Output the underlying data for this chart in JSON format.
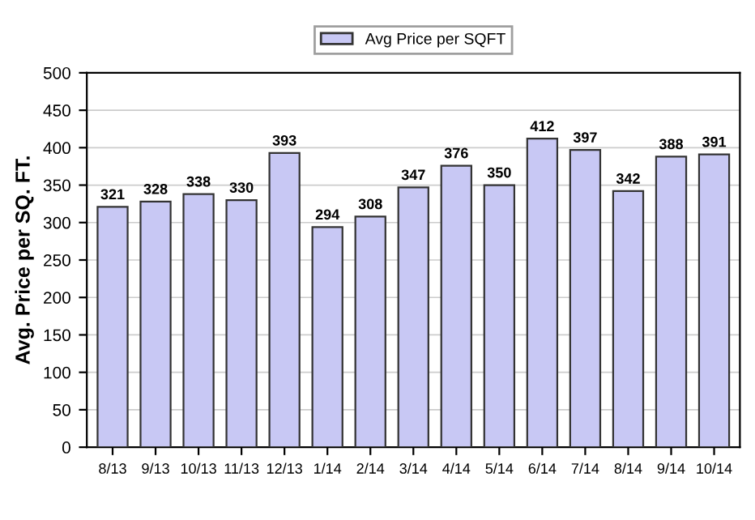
{
  "chart_data": {
    "type": "bar",
    "ylabel": "Avg. Price per SQ. FT.",
    "categories": [
      "8/13",
      "9/13",
      "10/13",
      "11/13",
      "12/13",
      "1/14",
      "2/14",
      "3/14",
      "4/14",
      "5/14",
      "6/14",
      "7/14",
      "8/14",
      "9/14",
      "10/14"
    ],
    "series": [
      {
        "name": "Avg Price per SQFT",
        "color": "#c8c8f4",
        "values": [
          321,
          328,
          338,
          330,
          393,
          294,
          308,
          347,
          376,
          350,
          412,
          397,
          342,
          388,
          391
        ]
      }
    ],
    "ylim": [
      0,
      500
    ],
    "yticks": [
      0,
      50,
      100,
      150,
      200,
      250,
      300,
      350,
      400,
      450,
      500
    ],
    "grid": "y",
    "legend": "top",
    "data_labels": true
  }
}
